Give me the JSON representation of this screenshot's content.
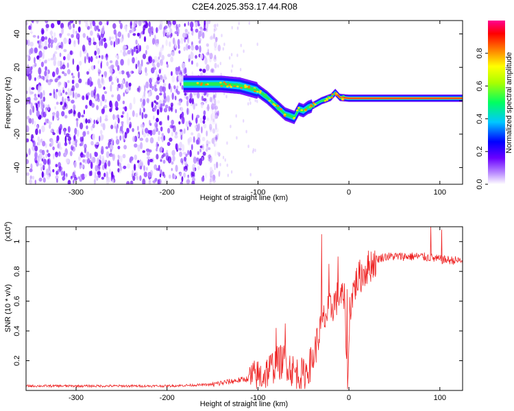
{
  "title": "C2E4.2025.353.17.44.R08",
  "chart_data": [
    {
      "type": "heatmap",
      "name": "spectrogram",
      "xlabel": "Height of straight line (km)",
      "ylabel": "Frequency (Hz)",
      "xlim": [
        -355,
        125
      ],
      "ylim": [
        -50,
        48
      ],
      "xticks": [
        -300,
        -200,
        -100,
        0,
        100
      ],
      "yticks": [
        -40,
        -20,
        0,
        20,
        40
      ],
      "xtick_labels": [
        "-300",
        "-200",
        "-100",
        "0",
        "100"
      ],
      "ytick_labels": [
        "-40",
        "-20",
        "0",
        "20",
        "40"
      ],
      "ridge_x": [
        -180,
        -160,
        -140,
        -120,
        -100,
        -90,
        -80,
        -70,
        -60,
        -55,
        -50,
        -45,
        -40,
        -30,
        -20,
        -15,
        -10,
        0,
        30,
        60,
        90,
        125
      ],
      "ridge_y": [
        10,
        10,
        10,
        9,
        6,
        2,
        -3,
        -8,
        -10,
        -5,
        -6,
        -4,
        -3,
        0,
        2,
        5,
        2,
        1.5,
        1.5,
        1.5,
        1.5,
        1.5
      ],
      "noise_x_range": [
        -355,
        -150
      ],
      "colorbar": {
        "label": "Normalized spectral amplitude",
        "range": [
          0,
          1
        ],
        "ticks": [
          0.0,
          0.2,
          0.4,
          0.6,
          0.8
        ],
        "tick_labels": [
          "0.0",
          "0.2",
          "0.4",
          "0.6",
          "0.8"
        ],
        "colors": [
          "#ffffff",
          "#7a00ff",
          "#0000ff",
          "#00ffff",
          "#00ff00",
          "#ffff00",
          "#ff7f00",
          "#ff0000",
          "#ff00a0"
        ]
      }
    },
    {
      "type": "line",
      "name": "snr",
      "xlabel": "Height of straight line (km)",
      "ylabel": "SNR (10 * v/v)",
      "multiplier_base": "(x10",
      "multiplier_exp": "4",
      "multiplier_close": ")",
      "xlim": [
        -355,
        125
      ],
      "ylim": [
        0,
        1.1
      ],
      "xticks": [
        -300,
        -200,
        -100,
        0,
        100
      ],
      "yticks": [
        0.2,
        0.4,
        0.6,
        0.8,
        1
      ],
      "xtick_labels": [
        "-300",
        "-200",
        "-100",
        "0",
        "100"
      ],
      "ytick_labels": [
        "0.2",
        "0.4",
        "0.6",
        "0.8",
        "1"
      ],
      "color": "#ee2222",
      "trend_x": [
        -355,
        -200,
        -150,
        -130,
        -110,
        -95,
        -80,
        -70,
        -60,
        -50,
        -40,
        -30,
        -25,
        -20,
        -15,
        -10,
        -5,
        -1,
        1,
        5,
        10,
        20,
        30,
        40,
        60,
        80,
        100,
        125
      ],
      "trend_y": [
        0.03,
        0.03,
        0.04,
        0.06,
        0.08,
        0.1,
        0.18,
        0.2,
        0.12,
        0.1,
        0.2,
        0.45,
        0.5,
        0.55,
        0.6,
        0.65,
        0.6,
        0.05,
        0.55,
        0.68,
        0.75,
        0.82,
        0.88,
        0.9,
        0.9,
        0.9,
        0.88,
        0.87
      ],
      "spikes": [
        {
          "x": -80,
          "y": 0.42
        },
        {
          "x": -70,
          "y": 0.45
        },
        {
          "x": -30,
          "y": 1.05
        },
        {
          "x": -22,
          "y": 0.85
        },
        {
          "x": -12,
          "y": 0.9
        },
        {
          "x": -2,
          "y": 0.68
        },
        {
          "x": 90,
          "y": 1.1
        },
        {
          "x": 102,
          "y": 1.08
        }
      ]
    }
  ]
}
